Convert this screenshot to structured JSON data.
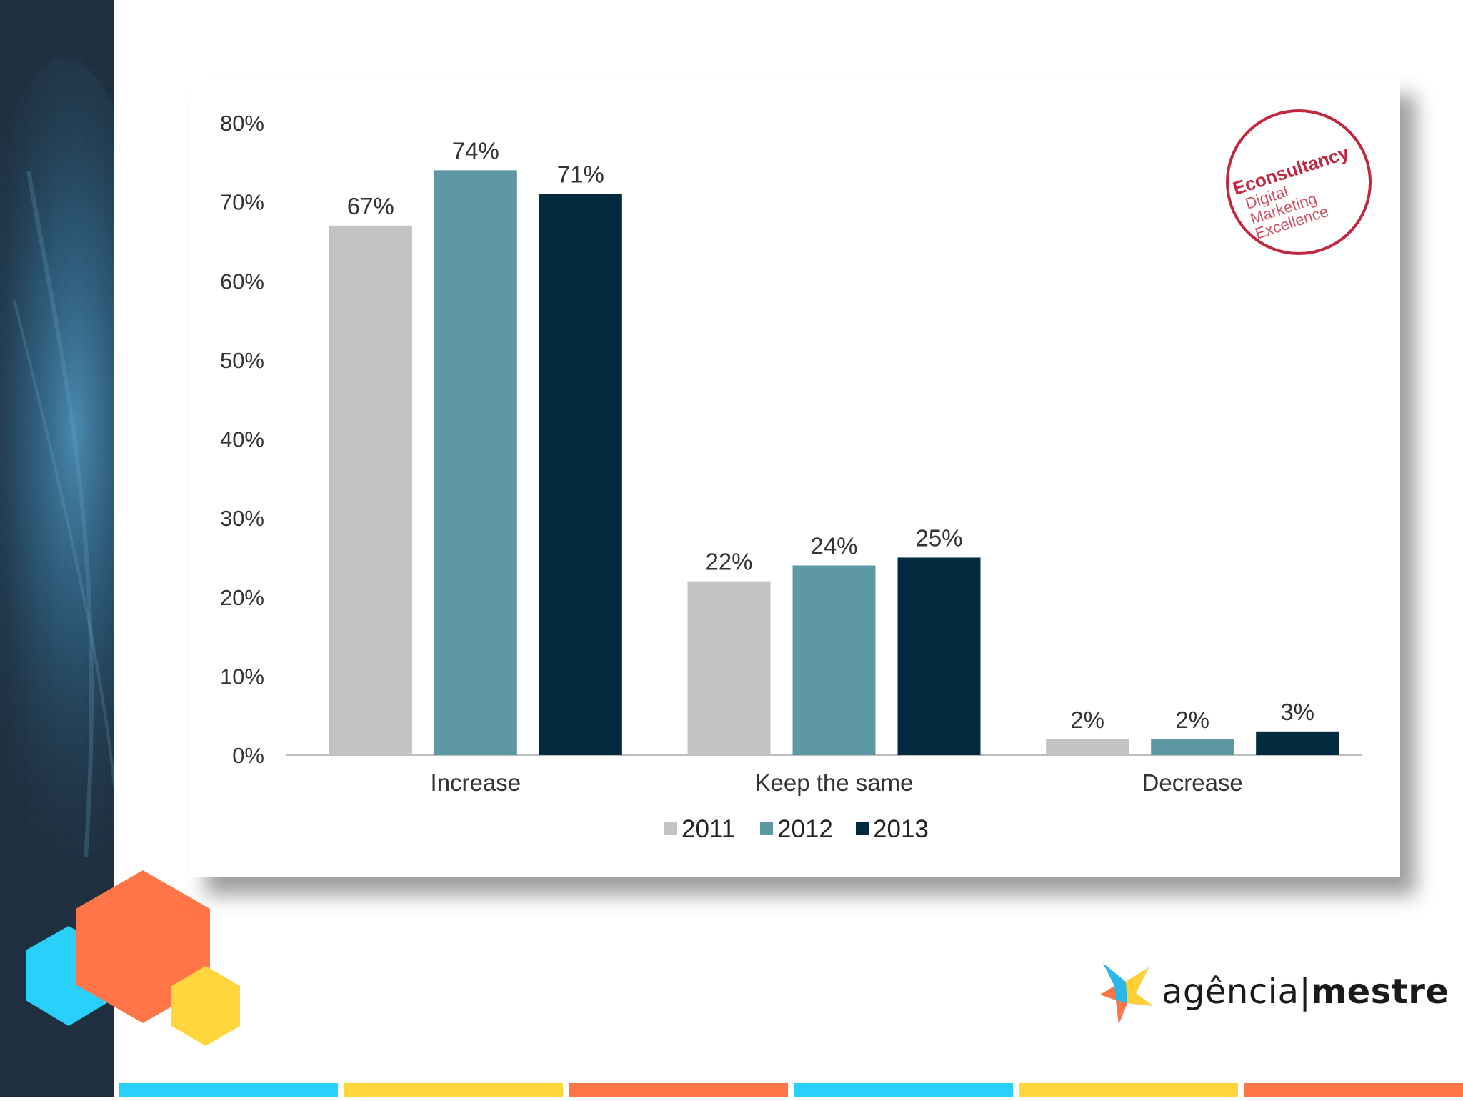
{
  "chart_data": {
    "type": "bar",
    "categories": [
      "Increase",
      "Keep the same",
      "Decrease"
    ],
    "series": [
      {
        "name": "2011",
        "values": [
          67,
          22,
          2
        ],
        "labels": [
          "67%",
          "22%",
          "2%"
        ],
        "color": "#c3c4c2"
      },
      {
        "name": "2012",
        "values": [
          74,
          24,
          2
        ],
        "labels": [
          "74%",
          "24%",
          "2%"
        ],
        "color": "#5e99a3"
      },
      {
        "name": "2013",
        "values": [
          71,
          25,
          3
        ],
        "labels": [
          "71%",
          "25%",
          "3%"
        ],
        "color": "#022b40"
      }
    ],
    "ylim": [
      0,
      80
    ],
    "yticks": [
      0,
      10,
      20,
      30,
      40,
      50,
      60,
      70,
      80
    ],
    "ytick_labels": [
      "0%",
      "10%",
      "20%",
      "30%",
      "40%",
      "50%",
      "60%",
      "70%",
      "80%"
    ],
    "legend": "bottom-center",
    "grid": false
  },
  "stamp": {
    "brand": "Econsultancy",
    "lines": [
      "Digital",
      "Marketing",
      "Excellence"
    ],
    "color": "#c0283f"
  },
  "logo": {
    "name_part1": "agência",
    "separator": "|",
    "name_part2": "mestre"
  },
  "colors": {
    "sidebar_dark": "#1e2f3f",
    "sidebar_glow": "#3f7fa4",
    "hex_cyan": "#29d1fa",
    "hex_orange": "#ff7548",
    "hex_yellow": "#ffd63c",
    "strip": [
      "#29d1fa",
      "#ffd63c",
      "#ff7548",
      "#29d1fa",
      "#ffd63c",
      "#ff7548"
    ]
  }
}
